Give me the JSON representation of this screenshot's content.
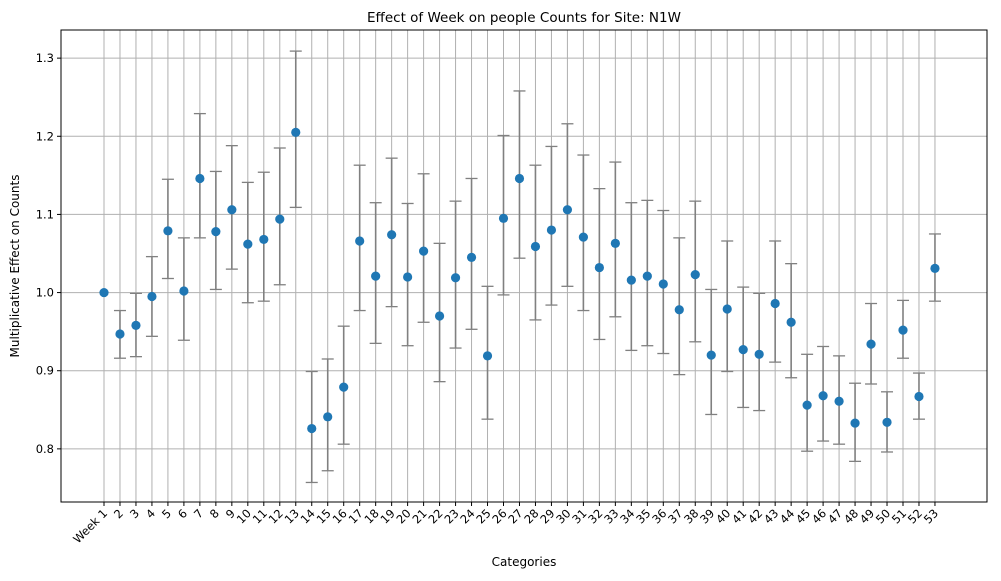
{
  "chart_data": {
    "type": "scatter",
    "title": "Effect of Week on people Counts for Site: N1W",
    "xlabel": "Categories",
    "ylabel": "Multiplicative Effect on Counts",
    "categories": [
      "Week 1",
      "2",
      "3",
      "4",
      "5",
      "6",
      "7",
      "8",
      "9",
      "10",
      "11",
      "12",
      "13",
      "14",
      "15",
      "16",
      "17",
      "18",
      "19",
      "20",
      "21",
      "22",
      "23",
      "24",
      "25",
      "26",
      "27",
      "28",
      "29",
      "30",
      "31",
      "32",
      "33",
      "34",
      "35",
      "36",
      "37",
      "38",
      "39",
      "40",
      "41",
      "42",
      "43",
      "44",
      "45",
      "46",
      "47",
      "48",
      "49",
      "50",
      "51",
      "52",
      "53"
    ],
    "values": [
      1.0,
      0.947,
      0.958,
      0.995,
      1.079,
      1.002,
      1.146,
      1.078,
      1.106,
      1.062,
      1.068,
      1.094,
      1.205,
      0.826,
      0.841,
      0.879,
      1.066,
      1.021,
      1.074,
      1.02,
      1.053,
      0.97,
      1.019,
      1.045,
      0.919,
      1.095,
      1.146,
      1.059,
      1.08,
      1.106,
      1.071,
      1.032,
      1.063,
      1.016,
      1.021,
      1.011,
      0.978,
      1.023,
      0.92,
      0.979,
      0.927,
      0.921,
      0.986,
      0.962,
      0.856,
      0.868,
      0.861,
      0.833,
      0.934,
      0.834,
      0.952,
      0.867,
      1.031
    ],
    "lower": [
      1.0,
      0.916,
      0.918,
      0.944,
      1.018,
      0.939,
      1.07,
      1.004,
      1.03,
      0.987,
      0.989,
      1.01,
      1.109,
      0.757,
      0.772,
      0.806,
      0.977,
      0.935,
      0.982,
      0.932,
      0.962,
      0.886,
      0.929,
      0.953,
      0.838,
      0.997,
      1.044,
      0.965,
      0.984,
      1.008,
      0.977,
      0.94,
      0.969,
      0.926,
      0.932,
      0.922,
      0.895,
      0.937,
      0.844,
      0.899,
      0.853,
      0.849,
      0.911,
      0.891,
      0.797,
      0.81,
      0.806,
      0.784,
      0.883,
      0.796,
      0.916,
      0.838,
      0.989
    ],
    "upper": [
      1.0,
      0.977,
      0.999,
      1.046,
      1.145,
      1.07,
      1.229,
      1.155,
      1.188,
      1.141,
      1.154,
      1.185,
      1.309,
      0.899,
      0.915,
      0.957,
      1.163,
      1.115,
      1.172,
      1.114,
      1.152,
      1.063,
      1.117,
      1.146,
      1.008,
      1.201,
      1.258,
      1.163,
      1.187,
      1.216,
      1.176,
      1.133,
      1.167,
      1.115,
      1.118,
      1.105,
      1.07,
      1.117,
      1.004,
      1.066,
      1.007,
      0.999,
      1.066,
      1.037,
      0.921,
      0.931,
      0.919,
      0.884,
      0.986,
      0.873,
      0.99,
      0.897,
      1.075
    ],
    "yticks": [
      "0.8",
      "0.9",
      "1.0",
      "1.1",
      "1.2",
      "1.3"
    ],
    "ylim": [
      0.732,
      1.336
    ],
    "grid": true,
    "colors": {
      "point": "#1f77b4",
      "errorbar": "#808080",
      "grid": "#b0b0b0",
      "axis": "#000000"
    }
  }
}
